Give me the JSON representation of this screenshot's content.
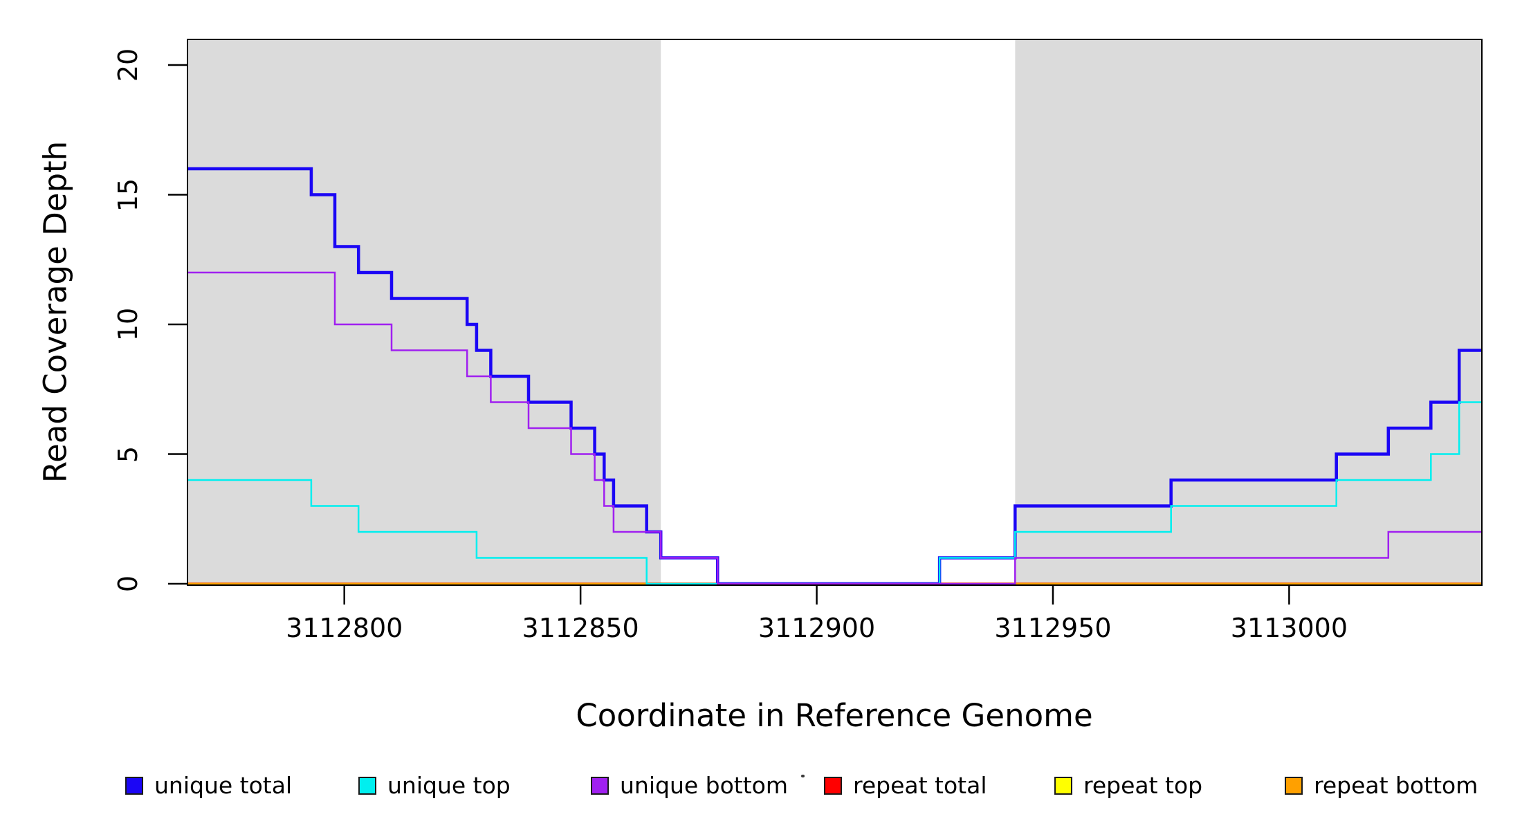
{
  "figure": {
    "background": "#ffffff",
    "shaded_band_color": "#dbdbdb",
    "box_color": "#000000",
    "text_color": "#000000"
  },
  "legend": {
    "items": [
      {
        "label": "unique total",
        "color": "#1b06f5"
      },
      {
        "label": "unique top",
        "color": "#00efef"
      },
      {
        "label": "unique bottom",
        "color": "#a020f0"
      },
      {
        "label": "repeat total",
        "color": "#ff0000"
      },
      {
        "label": "repeat top",
        "color": "#ffff00"
      },
      {
        "label": "repeat bottom",
        "color": "#ffa000"
      }
    ],
    "has_stray_dot_artifact": true
  },
  "chart_data": {
    "type": "line",
    "step": "after",
    "title": "",
    "xlabel": "Coordinate in Reference Genome",
    "ylabel": "Read Coverage Depth",
    "xlim": [
      3112766.8,
      3113040.8
    ],
    "ylim": [
      0,
      21
    ],
    "x_ticks": [
      3112800,
      3112850,
      3112900,
      3112950,
      3113000
    ],
    "x_tick_labels": [
      "3112800",
      "3112850",
      "3112900",
      "3112950",
      "3113000"
    ],
    "y_ticks": [
      0,
      5,
      10,
      15,
      20
    ],
    "y_tick_labels": [
      "0",
      "5",
      "10",
      "15",
      "20"
    ],
    "grid": false,
    "legend_position": "bottom",
    "shaded_regions": [
      {
        "from": 3112766.8,
        "to": 3112867
      },
      {
        "from": 3112942,
        "to": 3113040.8
      }
    ],
    "series": [
      {
        "name": "repeat total",
        "color": "#ff0000",
        "line_width": 3.5,
        "draw_order": 1,
        "steps": [
          [
            3112766.8,
            0
          ]
        ]
      },
      {
        "name": "repeat top",
        "color": "#ffff00",
        "line_width": 2,
        "draw_order": 2,
        "steps": [
          [
            3112766.8,
            0
          ]
        ]
      },
      {
        "name": "repeat bottom",
        "color": "#ffa000",
        "line_width": 3,
        "draw_order": 3,
        "steps": [
          [
            3112766.8,
            0
          ]
        ]
      },
      {
        "name": "unique total",
        "color": "#1b06f5",
        "line_width": 4.5,
        "draw_order": 4,
        "steps": [
          [
            3112766.8,
            16
          ],
          [
            3112793,
            15
          ],
          [
            3112798,
            13
          ],
          [
            3112803,
            12
          ],
          [
            3112810,
            11
          ],
          [
            3112826,
            10
          ],
          [
            3112828,
            9
          ],
          [
            3112831,
            8
          ],
          [
            3112839,
            7
          ],
          [
            3112848,
            6
          ],
          [
            3112853,
            5
          ],
          [
            3112855,
            4
          ],
          [
            3112857,
            3
          ],
          [
            3112864,
            2
          ],
          [
            3112867,
            1
          ],
          [
            3112879,
            0
          ],
          [
            3112926,
            1
          ],
          [
            3112942,
            3
          ],
          [
            3112975,
            4
          ],
          [
            3113010,
            5
          ],
          [
            3113021,
            6
          ],
          [
            3113030,
            7
          ],
          [
            3113036,
            9
          ]
        ]
      },
      {
        "name": "unique top",
        "color": "#00efef",
        "line_width": 2.5,
        "draw_order": 5,
        "steps": [
          [
            3112766.8,
            4
          ],
          [
            3112793,
            3
          ],
          [
            3112803,
            2
          ],
          [
            3112828,
            1
          ],
          [
            3112864,
            0
          ],
          [
            3112926,
            1
          ],
          [
            3112942,
            2
          ],
          [
            3112975,
            3
          ],
          [
            3113010,
            4
          ],
          [
            3113030,
            5
          ],
          [
            3113036,
            7
          ]
        ]
      },
      {
        "name": "unique bottom",
        "color": "#a020f0",
        "line_width": 2.5,
        "draw_order": 6,
        "steps": [
          [
            3112766.8,
            12
          ],
          [
            3112798,
            10
          ],
          [
            3112810,
            9
          ],
          [
            3112826,
            8
          ],
          [
            3112831,
            7
          ],
          [
            3112839,
            6
          ],
          [
            3112848,
            5
          ],
          [
            3112853,
            4
          ],
          [
            3112855,
            3
          ],
          [
            3112857,
            2
          ],
          [
            3112867,
            1
          ],
          [
            3112879,
            0
          ],
          [
            3112942,
            1
          ],
          [
            3113021,
            2
          ]
        ]
      }
    ]
  }
}
